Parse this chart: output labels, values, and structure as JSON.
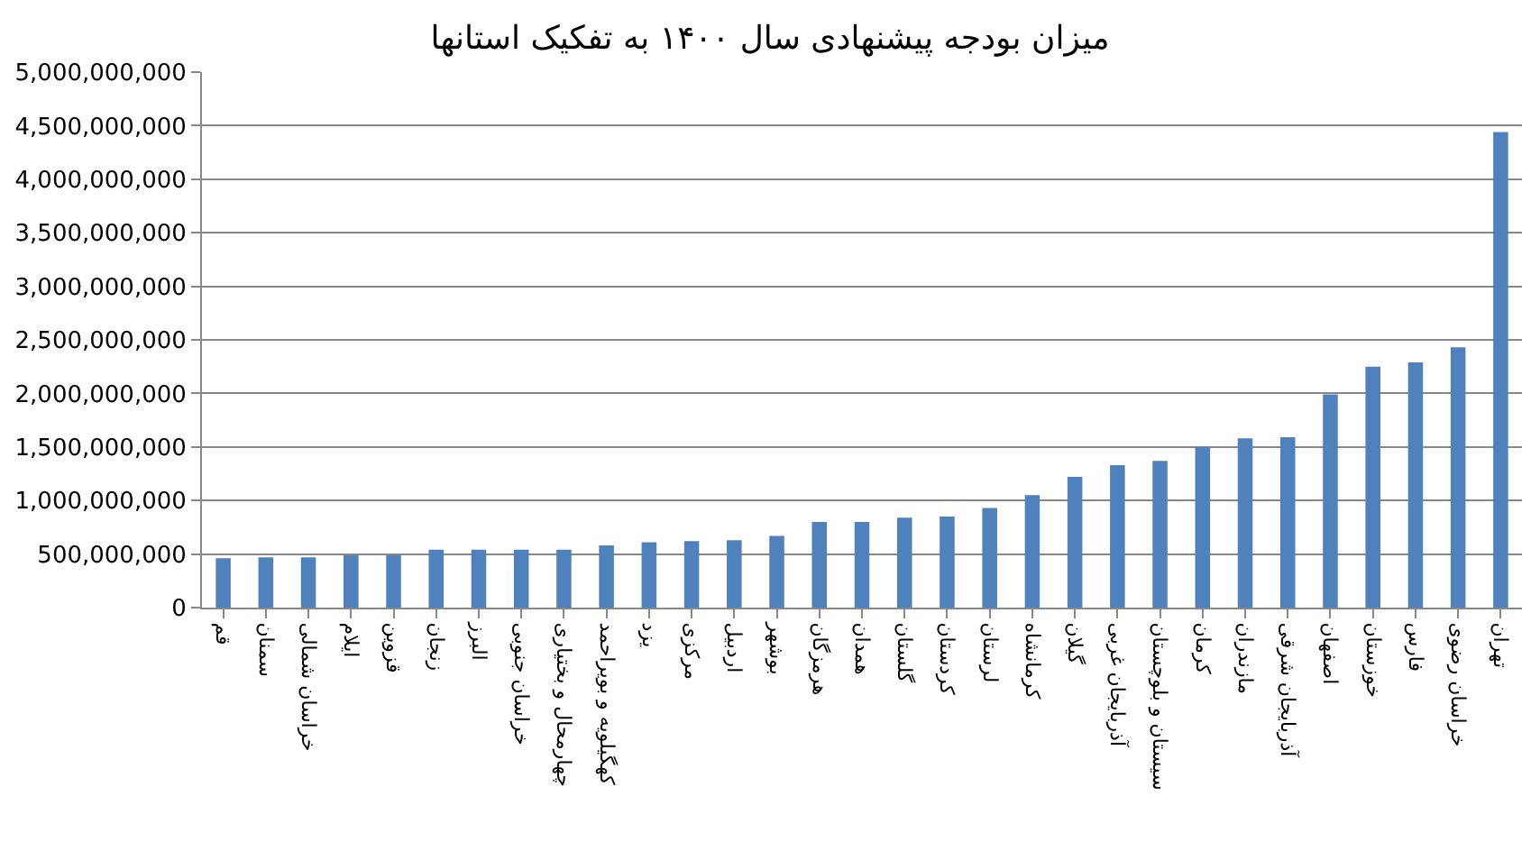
{
  "chart_data": {
    "type": "bar",
    "title": "میزان بودجه پیشنهادی سال ۱۴۰۰ به تفکیک استانها",
    "categories": [
      "قم",
      "سمنان",
      "خراسان شمالی",
      "ایلام",
      "قزوین",
      "زنجان",
      "البرز",
      "خراسان جنوبی",
      "چهارمحال و بختیاری",
      "کهگیلویه و بویراحمد",
      "یزد",
      "مرکزی",
      "اردبیل",
      "بوشهر",
      "هرمزگان",
      "همدان",
      "گلستان",
      "کردستان",
      "لرستان",
      "کرمانشاه",
      "گیلان",
      "آذربایجان غربی",
      "سیستان و بلوچستان",
      "کرمان",
      "مازندران",
      "آذربایجان شرقی",
      "اصفهان",
      "خوزستان",
      "فارس",
      "خراسان رضوی",
      "تهران"
    ],
    "values": [
      460000000,
      470000000,
      470000000,
      490000000,
      490000000,
      540000000,
      540000000,
      540000000,
      540000000,
      580000000,
      610000000,
      620000000,
      630000000,
      670000000,
      800000000,
      800000000,
      840000000,
      850000000,
      930000000,
      1050000000,
      1220000000,
      1330000000,
      1370000000,
      1500000000,
      1580000000,
      1590000000,
      1990000000,
      2250000000,
      2290000000,
      2430000000,
      4440000000
    ],
    "color": "#4f81bd",
    "ylim": [
      0,
      5000000000
    ],
    "yticks": [
      0,
      {
        "value": 500000000,
        "label": "500,000,000"
      },
      {
        "value": 1000000000,
        "label": "1,000,000,000"
      },
      {
        "value": 1500000000,
        "label": "1,500,000,000"
      },
      {
        "value": 2000000000,
        "label": "2,000,000,000"
      },
      {
        "value": 2500000000,
        "label": "2,500,000,000"
      },
      {
        "value": 3000000000,
        "label": "3,000,000,000"
      },
      {
        "value": 3500000000,
        "label": "3,500,000,000"
      },
      {
        "value": 4000000000,
        "label": "4,000,000,000"
      },
      {
        "value": 4500000000,
        "label": "4,500,000,000"
      },
      {
        "value": 5000000000,
        "label": "5,000,000,000"
      }
    ],
    "grid": "y"
  }
}
